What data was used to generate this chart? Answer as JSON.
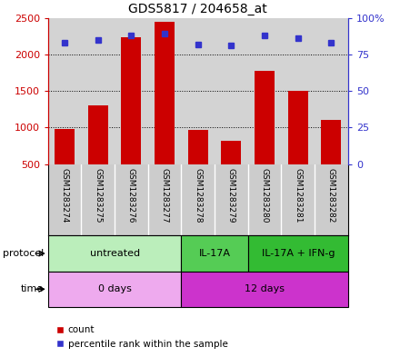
{
  "title": "GDS5817 / 204658_at",
  "samples": [
    "GSM1283274",
    "GSM1283275",
    "GSM1283276",
    "GSM1283277",
    "GSM1283278",
    "GSM1283279",
    "GSM1283280",
    "GSM1283281",
    "GSM1283282"
  ],
  "counts": [
    980,
    1300,
    2230,
    2440,
    970,
    820,
    1780,
    1500,
    1100
  ],
  "percentiles": [
    83,
    85,
    88,
    89,
    82,
    81,
    88,
    86,
    83
  ],
  "ylim_left": [
    500,
    2500
  ],
  "ylim_right": [
    0,
    100
  ],
  "yticks_left": [
    500,
    1000,
    1500,
    2000,
    2500
  ],
  "yticks_right": [
    0,
    25,
    50,
    75,
    100
  ],
  "bar_color": "#cc0000",
  "dot_color": "#3333cc",
  "bg_color": "#d3d3d3",
  "sample_box_color": "#cccccc",
  "protocol_groups": [
    {
      "label": "untreated",
      "start": 0,
      "end": 4,
      "color": "#bbeebb"
    },
    {
      "label": "IL-17A",
      "start": 4,
      "end": 6,
      "color": "#55cc55"
    },
    {
      "label": "IL-17A + IFN-g",
      "start": 6,
      "end": 9,
      "color": "#33bb33"
    }
  ],
  "time_groups": [
    {
      "label": "0 days",
      "start": 0,
      "end": 4,
      "color": "#eeaaee"
    },
    {
      "label": "12 days",
      "start": 4,
      "end": 9,
      "color": "#cc33cc"
    }
  ],
  "protocol_label": "protocol",
  "time_label": "time",
  "legend_count": "count",
  "legend_pct": "percentile rank within the sample"
}
